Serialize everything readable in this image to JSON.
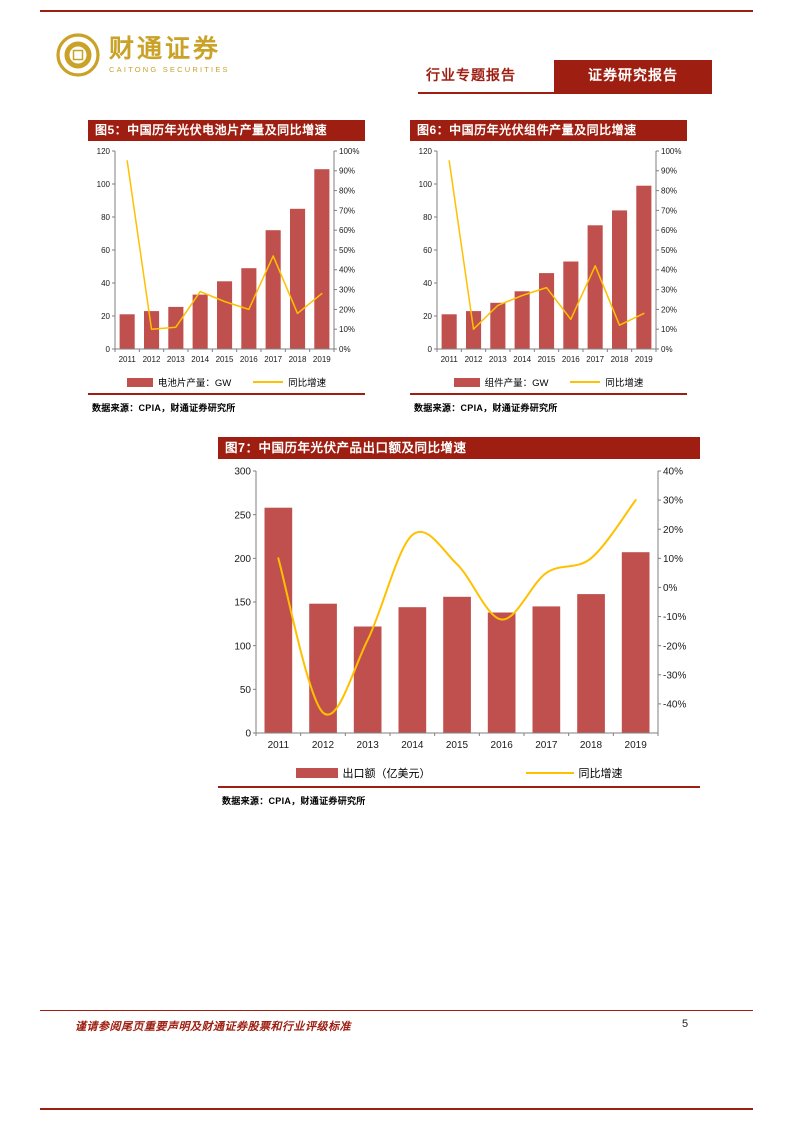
{
  "header": {
    "brand_cn": "财通证券",
    "brand_en": "CAITONG SECURITIES",
    "tag_industry": "行业专题报告",
    "tag_research": "证券研究报告"
  },
  "footer": {
    "disclaimer": "谨请参阅尾页重要声明及财通证券股票和行业评级标准",
    "page_number": "5"
  },
  "colors": {
    "accent_dark_red": "#9E1F12",
    "bar_red": "#C0504D",
    "line_yellow": "#FFC000",
    "brand_gold": "#C9A227",
    "axis_grey": "#7F7F7F"
  },
  "chart_data": [
    {
      "id": "fig5",
      "type": "bar+line",
      "title": "图5：中国历年光伏电池片产量及同比增速",
      "categories": [
        "2011",
        "2012",
        "2013",
        "2014",
        "2015",
        "2016",
        "2017",
        "2018",
        "2019"
      ],
      "bar_series": {
        "name": "电池片产量：GW",
        "values": [
          21,
          23,
          25.5,
          33,
          41,
          49,
          72,
          85,
          109
        ]
      },
      "line_series": {
        "name": "同比增速",
        "values": [
          95,
          10,
          11,
          29,
          24,
          20,
          47,
          18,
          28
        ]
      },
      "left_axis": {
        "min": 0,
        "max": 120,
        "step": 20
      },
      "right_axis": {
        "min": 0,
        "max": 100,
        "ticks": [
          0,
          10,
          20,
          30,
          40,
          50,
          60,
          70,
          80,
          90,
          100
        ]
      },
      "legend_position": "bottom",
      "grid": "off",
      "source": "数据来源：CPIA，财通证券研究所"
    },
    {
      "id": "fig6",
      "type": "bar+line",
      "title": "图6：中国历年光伏组件产量及同比增速",
      "categories": [
        "2011",
        "2012",
        "2013",
        "2014",
        "2015",
        "2016",
        "2017",
        "2018",
        "2019"
      ],
      "bar_series": {
        "name": "组件产量：GW",
        "values": [
          21,
          23,
          28,
          35,
          46,
          53,
          75,
          84,
          99
        ]
      },
      "line_series": {
        "name": "同比增速",
        "values": [
          95,
          10,
          22,
          27,
          31,
          15,
          42,
          12,
          18
        ]
      },
      "left_axis": {
        "min": 0,
        "max": 120,
        "step": 20
      },
      "right_axis": {
        "min": 0,
        "max": 100,
        "ticks": [
          0,
          10,
          20,
          30,
          40,
          50,
          60,
          70,
          80,
          90,
          100
        ]
      },
      "legend_position": "bottom",
      "grid": "off",
      "source": "数据来源：CPIA，财通证券研究所"
    },
    {
      "id": "fig7",
      "type": "bar+line",
      "title": "图7：中国历年光伏产品出口额及同比增速",
      "categories": [
        "2011",
        "2012",
        "2013",
        "2014",
        "2015",
        "2016",
        "2017",
        "2018",
        "2019"
      ],
      "bar_series": {
        "name": "出口额（亿美元）",
        "values": [
          258,
          148,
          122,
          144,
          156,
          138,
          145,
          159,
          207
        ]
      },
      "line_series": {
        "name": "同比增速",
        "values": [
          10,
          -43,
          -18,
          18,
          8,
          -11,
          5,
          10,
          30
        ]
      },
      "left_axis": {
        "min": 0,
        "max": 300,
        "step": 50
      },
      "right_axis": {
        "min": -50,
        "max": 40,
        "ticks": [
          -40,
          -30,
          -20,
          -10,
          0,
          10,
          20,
          30,
          40
        ]
      },
      "legend_position": "bottom",
      "grid": "off",
      "source": "数据来源：CPIA，财通证券研究所"
    }
  ]
}
